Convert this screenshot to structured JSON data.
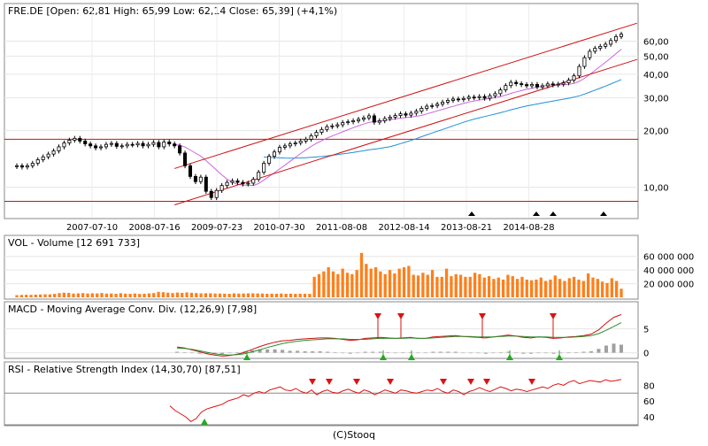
{
  "chart_data": [
    {
      "type": "candlestick",
      "title": "FRE.DE [Open: 62,81  High: 65,99  Low: 62,14  Close: 65,39] (+4,1%)",
      "x_ticks": [
        "2007-07-10",
        "2008-07-16",
        "2009-07-23",
        "2010-07-30",
        "2011-08-08",
        "2012-08-14",
        "2013-08-21",
        "2014-08-28"
      ],
      "y_scale": "log",
      "y_ticks": [
        "10,00",
        "20,00",
        "30,00",
        "40,00",
        "50,00",
        "60,00"
      ],
      "ylim": [
        8,
        75
      ],
      "horizontal_lines": [
        18,
        8.4
      ],
      "closes": [
        13.0,
        12.8,
        13.0,
        13.4,
        14.0,
        14.5,
        15.0,
        15.6,
        16.4,
        17.2,
        17.8,
        18.2,
        17.6,
        17.0,
        16.6,
        16.2,
        16.4,
        16.9,
        17.1,
        16.5,
        16.6,
        16.9,
        16.8,
        17.1,
        16.6,
        16.9,
        17.3,
        16.4,
        17.4,
        17.0,
        16.6,
        15.2,
        13.0,
        11.4,
        10.7,
        11.3,
        9.5,
        8.8,
        9.6,
        10.2,
        10.6,
        10.8,
        10.6,
        10.4,
        10.5,
        11.0,
        12.0,
        13.4,
        14.6,
        15.4,
        16.3,
        16.6,
        17.0,
        17.2,
        17.6,
        18.0,
        18.8,
        19.6,
        20.3,
        21.0,
        21.2,
        21.5,
        22.1,
        22.3,
        22.6,
        23.0,
        23.4,
        24.0,
        22.2,
        22.6,
        23.2,
        23.6,
        24.1,
        24.6,
        24.2,
        24.8,
        25.4,
        26.3,
        27.0,
        27.2,
        27.7,
        28.4,
        29.0,
        29.5,
        29.3,
        29.7,
        30.2,
        30.0,
        30.4,
        29.8,
        30.7,
        31.5,
        33.0,
        34.8,
        36.2,
        35.6,
        35.2,
        34.7,
        35.3,
        34.2,
        34.7,
        35.5,
        35.1,
        35.4,
        36.0,
        37.2,
        39.2,
        44.0,
        49.0,
        53.0,
        55.0,
        56.3,
        57.8,
        60.5,
        63.5,
        65.39
      ],
      "overlays": [
        {
          "name": "MA-slow",
          "color": "#1e90d8",
          "start": 47
        },
        {
          "name": "MA-fast",
          "color": "#cc66dd",
          "start": 30
        }
      ],
      "trend_channel": {
        "color": "#cc1111"
      },
      "markers": {
        "type": "triangle-up",
        "color": "#000000"
      }
    },
    {
      "type": "bar",
      "title": "VOL - Volume [12 691 733]",
      "y_ticks": [
        "20 000 000",
        "40 000 000",
        "60 000 000"
      ],
      "ylim": [
        0,
        70000000
      ],
      "color": "#ff7f1a",
      "values": [
        3200000,
        3500000,
        3800000,
        3600000,
        3900000,
        4200000,
        4500000,
        4300000,
        5100000,
        6200000,
        6800000,
        6500000,
        5500000,
        5800000,
        6200000,
        5600000,
        5900000,
        5700000,
        6300000,
        5400000,
        5600000,
        5200000,
        6000000,
        5400000,
        5200000,
        5600000,
        5000000,
        5300000,
        5800000,
        6200000,
        8000000,
        7500000,
        6800000,
        6200000,
        7000000,
        6500000,
        7200000,
        6700000,
        6300000,
        5800000,
        6000000,
        5900000,
        5600000,
        5500000,
        5400000,
        5200000,
        5800000,
        5500000,
        5600000,
        5800000,
        5900000,
        5700000,
        5500000,
        5200000,
        5400000,
        5300000,
        5600000,
        5200000,
        5400000,
        5100000,
        5300000,
        5200000,
        5000000,
        30000000,
        34000000,
        38000000,
        44000000,
        38000000,
        34000000,
        42000000,
        36000000,
        34000000,
        40000000,
        65000000,
        49000000,
        42000000,
        44000000,
        38000000,
        34000000,
        40000000,
        35000000,
        42000000,
        44000000,
        46000000,
        33000000,
        32000000,
        36000000,
        33000000,
        40000000,
        30000000,
        30000000,
        42000000,
        31000000,
        34000000,
        33000000,
        30000000,
        30000000,
        36000000,
        34000000,
        29000000,
        31000000,
        27000000,
        29000000,
        26000000,
        33000000,
        31000000,
        27000000,
        30000000,
        26000000,
        25000000,
        26000000,
        29000000,
        24000000,
        26000000,
        32000000,
        27000000,
        24000000,
        28000000,
        30000000,
        26000000,
        24000000,
        35000000,
        29000000,
        27000000,
        23000000,
        21000000,
        28000000,
        24000000,
        12691733
      ]
    },
    {
      "type": "line",
      "title": "MACD - Moving Average Conv. Div. (12,26,9) [7,98]",
      "y_ticks": [
        "0",
        "5"
      ],
      "ylim": [
        -1,
        9
      ],
      "series": [
        {
          "color": "#cc1111",
          "values": [
            1.2,
            1.0,
            0.6,
            0.2,
            -0.2,
            -0.5,
            -0.7,
            -0.6,
            -0.3,
            0.1,
            0.7,
            1.3,
            1.8,
            2.2,
            2.5,
            2.6,
            2.8,
            2.9,
            3.0,
            3.1,
            3.1,
            3.0,
            2.8,
            2.6,
            2.7,
            3.0,
            3.1,
            3.2,
            3.1,
            3.0,
            3.1,
            3.2,
            3.0,
            3.0,
            3.3,
            3.4,
            3.5,
            3.6,
            3.4,
            3.3,
            3.2,
            3.1,
            3.3,
            3.5,
            3.7,
            3.5,
            3.2,
            3.1,
            3.3,
            3.2,
            3.0,
            3.1,
            3.3,
            3.4,
            3.6,
            3.9,
            4.8,
            6.2,
            7.4,
            7.98
          ]
        },
        {
          "color": "#2e8b2e",
          "values": [
            1.0,
            0.9,
            0.7,
            0.4,
            0.1,
            -0.2,
            -0.4,
            -0.5,
            -0.4,
            -0.2,
            0.2,
            0.6,
            1.1,
            1.5,
            1.9,
            2.2,
            2.4,
            2.6,
            2.7,
            2.8,
            2.9,
            2.9,
            2.9,
            2.8,
            2.8,
            2.8,
            2.9,
            3.0,
            3.0,
            3.0,
            3.0,
            3.1,
            3.0,
            3.0,
            3.1,
            3.2,
            3.3,
            3.4,
            3.4,
            3.4,
            3.3,
            3.3,
            3.3,
            3.4,
            3.5,
            3.5,
            3.4,
            3.3,
            3.3,
            3.3,
            3.2,
            3.2,
            3.2,
            3.3,
            3.4,
            3.6,
            4.0,
            4.7,
            5.5,
            6.3
          ]
        }
      ],
      "histogram_color": "#a0a0a0",
      "buy_markers_color": "#22aa22",
      "sell_markers_color": "#dd1111"
    },
    {
      "type": "line",
      "title": "RSI - Relative Strength Index (14,30,70) [87,51]",
      "y_ticks": [
        "40",
        "60",
        "80"
      ],
      "ylim": [
        30,
        95
      ],
      "levels": [
        30,
        70
      ],
      "color": "#dd1111",
      "start": 47,
      "values": [
        54,
        48,
        44,
        40,
        34,
        38,
        46,
        50,
        52,
        54,
        56,
        60,
        62,
        64,
        68,
        66,
        70,
        72,
        70,
        74,
        76,
        78,
        74,
        73,
        76,
        72,
        70,
        74,
        68,
        72,
        74,
        71,
        70,
        73,
        75,
        72,
        70,
        74,
        72,
        68,
        71,
        74,
        72,
        70,
        74,
        73,
        71,
        70,
        72,
        74,
        73,
        76,
        72,
        70,
        74,
        72,
        68,
        72,
        74,
        77,
        74,
        72,
        75,
        78,
        76,
        73,
        75,
        74,
        72,
        74,
        76,
        78,
        76,
        80,
        82,
        80,
        84,
        86,
        82,
        84,
        86,
        85,
        84,
        87,
        85,
        86,
        87.51
      ],
      "buy_markers_color": "#22aa22",
      "sell_markers_color": "#dd1111"
    }
  ],
  "footer": "(C)Stooq"
}
